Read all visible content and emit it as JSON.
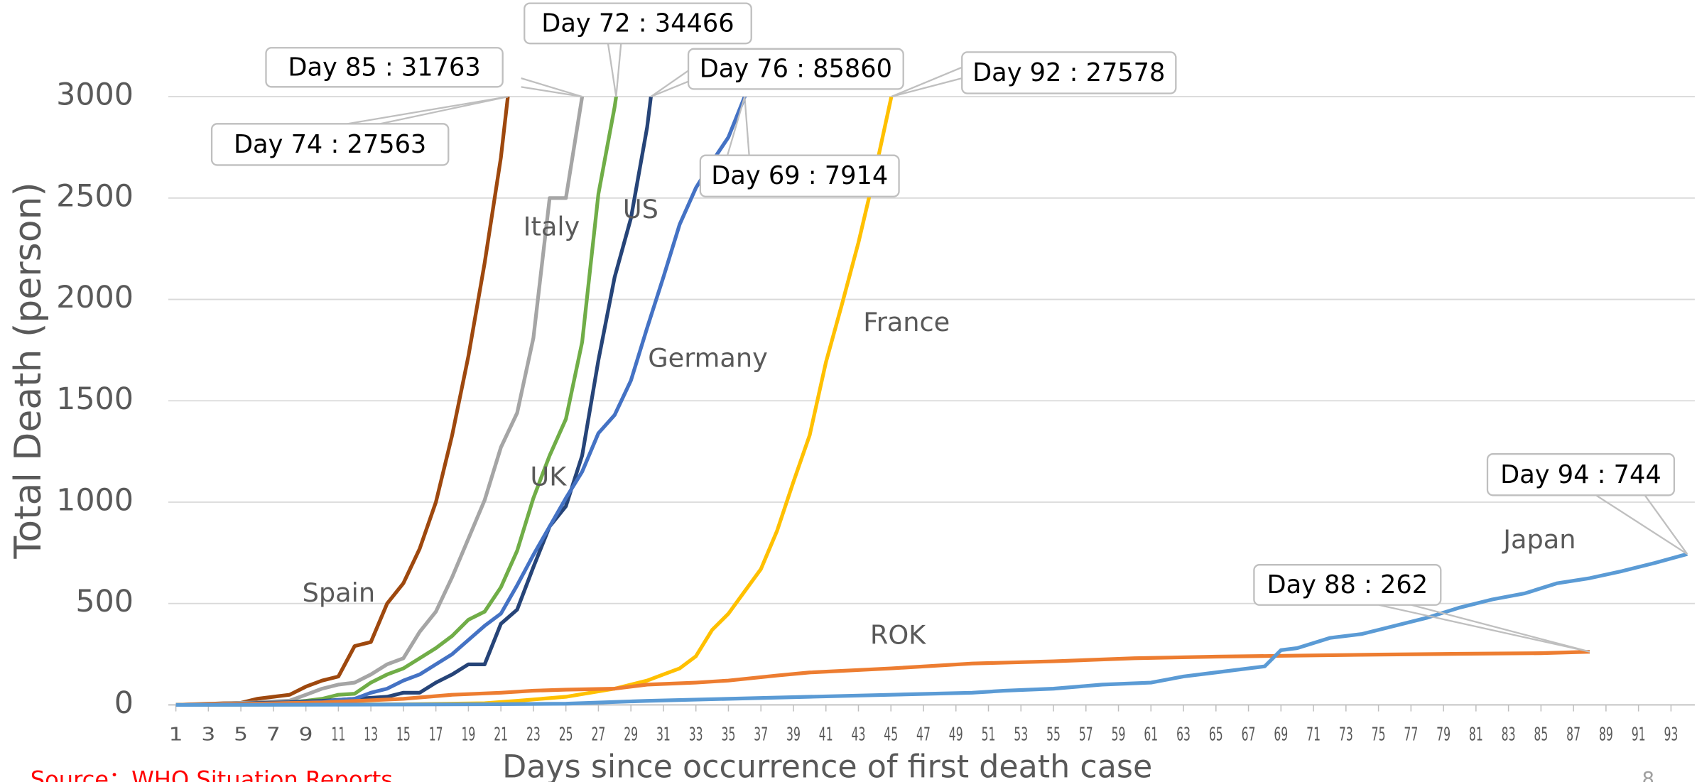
{
  "chart_data": {
    "type": "line",
    "ylabel": "Total Death (person)",
    "xlabel": "Days since occurrence of first death case",
    "source": "Source：WHO Situation Reports",
    "page_number": "8",
    "xlim": [
      0.5,
      94.5
    ],
    "xticks": [
      1,
      3,
      5,
      7,
      9,
      11,
      13,
      15,
      17,
      19,
      21,
      23,
      25,
      27,
      29,
      31,
      33,
      35,
      37,
      39,
      41,
      43,
      45,
      47,
      49,
      51,
      53,
      55,
      57,
      59,
      61,
      63,
      65,
      67,
      69,
      71,
      73,
      75,
      77,
      79,
      81,
      83,
      85,
      87,
      89,
      91,
      93
    ],
    "ylim": [
      0,
      3000
    ],
    "yticks": [
      0,
      500,
      1000,
      1500,
      2000,
      2500,
      3000
    ],
    "grid": true,
    "series": [
      {
        "name": "Spain",
        "color": "#9e480e",
        "annotation": "Day 74 : 27563",
        "x": [
          1,
          2,
          3,
          4,
          5,
          6,
          7,
          8,
          9,
          10,
          11,
          12,
          13,
          14,
          15,
          16,
          17,
          18,
          19,
          20,
          21,
          22
        ],
        "values": [
          0,
          3,
          5,
          8,
          10,
          30,
          40,
          50,
          90,
          120,
          140,
          290,
          310,
          500,
          600,
          770,
          1000,
          1330,
          1720,
          2180,
          2700,
          3400
        ]
      },
      {
        "name": "Italy",
        "color": "#a5a5a5",
        "annotation": "Day 85 : 31763",
        "x": [
          1,
          2,
          3,
          4,
          5,
          6,
          7,
          8,
          9,
          10,
          11,
          12,
          13,
          14,
          15,
          16,
          17,
          18,
          19,
          20,
          21,
          22,
          23,
          24,
          25,
          26,
          27
        ],
        "values": [
          0,
          2,
          3,
          7,
          10,
          12,
          17,
          21,
          50,
          80,
          100,
          110,
          150,
          200,
          230,
          360,
          460,
          630,
          820,
          1010,
          1270,
          1440,
          1810,
          2500,
          2500,
          3000,
          3400
        ]
      },
      {
        "name": "UK",
        "color": "#70ad47",
        "annotation": "Day 72 : 34466",
        "x": [
          1,
          2,
          3,
          4,
          5,
          6,
          7,
          8,
          9,
          10,
          11,
          12,
          13,
          14,
          15,
          16,
          17,
          18,
          19,
          20,
          21,
          22,
          23,
          24,
          25,
          26,
          27,
          28,
          29
        ],
        "values": [
          0,
          1,
          2,
          3,
          5,
          7,
          9,
          12,
          20,
          30,
          50,
          55,
          110,
          150,
          180,
          230,
          280,
          340,
          420,
          460,
          580,
          760,
          1020,
          1230,
          1410,
          1790,
          2520,
          2950,
          3500
        ]
      },
      {
        "name": "US",
        "color": "#264478",
        "annotation": "Day 76 : 85860",
        "x": [
          1,
          2,
          3,
          4,
          5,
          6,
          7,
          8,
          9,
          10,
          11,
          12,
          13,
          14,
          15,
          16,
          17,
          18,
          19,
          20,
          21,
          22,
          23,
          24,
          25,
          26,
          27,
          28,
          29,
          30,
          31
        ],
        "values": [
          0,
          1,
          2,
          4,
          6,
          9,
          11,
          13,
          17,
          20,
          25,
          30,
          35,
          40,
          60,
          60,
          110,
          150,
          200,
          200,
          400,
          470,
          680,
          880,
          980,
          1230,
          1700,
          2110,
          2400,
          2850,
          3500
        ]
      },
      {
        "name": "Germany",
        "color": "#4472c4",
        "annotation": "Day 69 : 7914",
        "x": [
          1,
          2,
          3,
          4,
          5,
          6,
          7,
          8,
          9,
          10,
          11,
          12,
          13,
          14,
          15,
          16,
          17,
          18,
          19,
          20,
          21,
          22,
          23,
          24,
          25,
          26,
          27,
          28,
          29,
          30,
          31,
          32,
          33,
          34,
          35,
          36,
          37
        ],
        "values": [
          0,
          0,
          2,
          2,
          3,
          6,
          8,
          10,
          12,
          15,
          25,
          30,
          60,
          80,
          120,
          150,
          200,
          250,
          320,
          390,
          450,
          590,
          740,
          880,
          1020,
          1150,
          1340,
          1430,
          1600,
          1860,
          2110,
          2370,
          2550,
          2680,
          2800,
          3000,
          3200
        ]
      },
      {
        "name": "France",
        "color": "#ffc000",
        "annotation": "Day 92 : 27578",
        "x": [
          1,
          5,
          10,
          15,
          20,
          22,
          25,
          28,
          30,
          31,
          32,
          33,
          34,
          35,
          36,
          37,
          38,
          39,
          40,
          41,
          42,
          43,
          44,
          45,
          46
        ],
        "values": [
          0,
          1,
          2,
          3,
          8,
          20,
          40,
          80,
          120,
          150,
          180,
          240,
          370,
          450,
          560,
          670,
          860,
          1100,
          1330,
          1690,
          1980,
          2280,
          2620,
          2990,
          3400
        ]
      },
      {
        "name": "ROK",
        "color": "#ed7d31",
        "annotation": "Day 88 : 262",
        "x": [
          1,
          5,
          10,
          15,
          18,
          21,
          23,
          25,
          28,
          30,
          33,
          35,
          38,
          40,
          45,
          50,
          55,
          60,
          65,
          70,
          75,
          80,
          85,
          88
        ],
        "values": [
          0,
          5,
          12,
          30,
          50,
          60,
          70,
          75,
          80,
          100,
          110,
          120,
          145,
          160,
          180,
          204,
          215,
          230,
          238,
          243,
          248,
          252,
          255,
          262
        ]
      },
      {
        "name": "Japan",
        "color": "#5b9bd5",
        "annotation": "Day 94 : 744",
        "x": [
          1,
          10,
          20,
          25,
          30,
          35,
          40,
          45,
          50,
          52,
          55,
          58,
          61,
          63,
          65,
          67,
          68,
          69,
          70,
          72,
          74,
          76,
          78,
          80,
          82,
          84,
          86,
          88,
          90,
          92,
          94
        ],
        "values": [
          0,
          1,
          3,
          6,
          20,
          30,
          40,
          50,
          60,
          70,
          80,
          100,
          110,
          140,
          160,
          180,
          190,
          270,
          280,
          330,
          350,
          390,
          430,
          480,
          520,
          550,
          600,
          625,
          660,
          700,
          744
        ]
      }
    ]
  }
}
